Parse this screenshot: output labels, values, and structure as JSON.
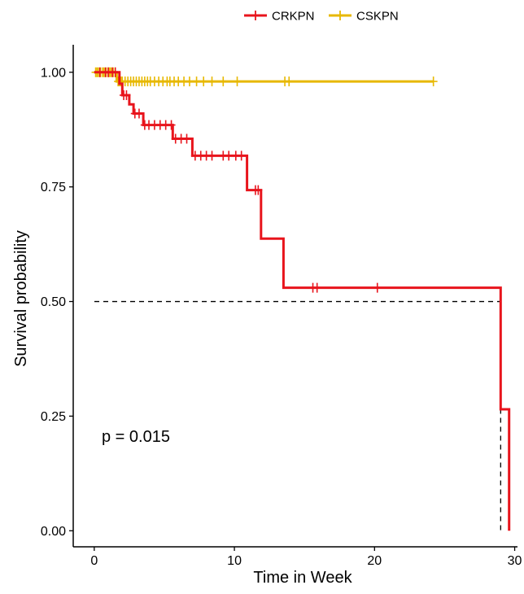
{
  "chart_data": {
    "type": "line",
    "subtype": "kaplan-meier",
    "title": "",
    "xlabel": "Time in Week",
    "ylabel": "Survival probability",
    "xlim": [
      -1.5,
      30.2
    ],
    "ylim": [
      -0.035,
      1.06
    ],
    "xticks": [
      0,
      10,
      20,
      30
    ],
    "yticks": [
      0.0,
      0.25,
      0.5,
      0.75,
      1.0
    ],
    "ytick_labels": [
      "0.00",
      "0.25",
      "0.50",
      "0.75",
      "1.00"
    ],
    "legend": {
      "position": "top",
      "entries": [
        "CRKPN",
        "CSKPN"
      ]
    },
    "grid": false,
    "annotation": "p = 0.015",
    "median_line": {
      "y": 0.5,
      "x_end": 29.0
    },
    "series": [
      {
        "name": "CRKPN",
        "color": "#e8141c",
        "steps": [
          [
            0,
            1.0
          ],
          [
            1.8,
            1.0
          ],
          [
            1.8,
            0.975
          ],
          [
            2.0,
            0.975
          ],
          [
            2.0,
            0.95
          ],
          [
            2.5,
            0.95
          ],
          [
            2.5,
            0.93
          ],
          [
            2.8,
            0.93
          ],
          [
            2.8,
            0.91
          ],
          [
            3.5,
            0.91
          ],
          [
            3.5,
            0.885
          ],
          [
            5.6,
            0.885
          ],
          [
            5.6,
            0.855
          ],
          [
            7.0,
            0.855
          ],
          [
            7.0,
            0.818
          ],
          [
            10.9,
            0.818
          ],
          [
            10.9,
            0.743
          ],
          [
            11.9,
            0.743
          ],
          [
            11.9,
            0.637
          ],
          [
            13.5,
            0.637
          ],
          [
            13.5,
            0.53
          ],
          [
            29.0,
            0.53
          ],
          [
            29.0,
            0.265
          ],
          [
            29.6,
            0.265
          ],
          [
            29.6,
            0.0
          ]
        ],
        "censor_x": [
          0.4,
          0.8,
          1.0,
          1.3,
          1.5,
          2.1,
          2.3,
          2.9,
          3.2,
          3.6,
          3.9,
          4.3,
          4.7,
          5.1,
          5.5,
          5.8,
          6.2,
          6.6,
          7.2,
          7.6,
          8.0,
          8.4,
          9.2,
          9.6,
          10.1,
          10.5,
          11.5,
          11.7,
          15.6,
          15.9,
          20.2
        ],
        "censor_y": [
          1.0,
          1.0,
          1.0,
          1.0,
          1.0,
          0.95,
          0.95,
          0.91,
          0.91,
          0.885,
          0.885,
          0.885,
          0.885,
          0.885,
          0.885,
          0.855,
          0.855,
          0.855,
          0.818,
          0.818,
          0.818,
          0.818,
          0.818,
          0.818,
          0.818,
          0.818,
          0.743,
          0.743,
          0.53,
          0.53,
          0.53
        ]
      },
      {
        "name": "CSKPN",
        "color": "#e7b800",
        "steps": [
          [
            0,
            1.0
          ],
          [
            1.6,
            1.0
          ],
          [
            1.6,
            0.98
          ],
          [
            24.2,
            0.98
          ]
        ],
        "censor_x": [
          0.1,
          0.2,
          0.3,
          0.45,
          0.6,
          0.7,
          0.85,
          1.0,
          1.1,
          1.2,
          1.35,
          1.5,
          1.7,
          1.8,
          1.9,
          2.0,
          2.2,
          2.4,
          2.6,
          2.8,
          3.0,
          3.2,
          3.4,
          3.6,
          3.8,
          4.0,
          4.3,
          4.6,
          4.9,
          5.2,
          5.4,
          5.7,
          6.0,
          6.4,
          6.8,
          7.3,
          7.8,
          8.4,
          9.2,
          10.2,
          13.6,
          13.9,
          24.2
        ],
        "censor_y": [
          1.0,
          1.0,
          1.0,
          1.0,
          1.0,
          1.0,
          1.0,
          1.0,
          1.0,
          1.0,
          1.0,
          1.0,
          0.98,
          0.98,
          0.98,
          0.98,
          0.98,
          0.98,
          0.98,
          0.98,
          0.98,
          0.98,
          0.98,
          0.98,
          0.98,
          0.98,
          0.98,
          0.98,
          0.98,
          0.98,
          0.98,
          0.98,
          0.98,
          0.98,
          0.98,
          0.98,
          0.98,
          0.98,
          0.98,
          0.98,
          0.98,
          0.98,
          0.98
        ]
      }
    ]
  }
}
